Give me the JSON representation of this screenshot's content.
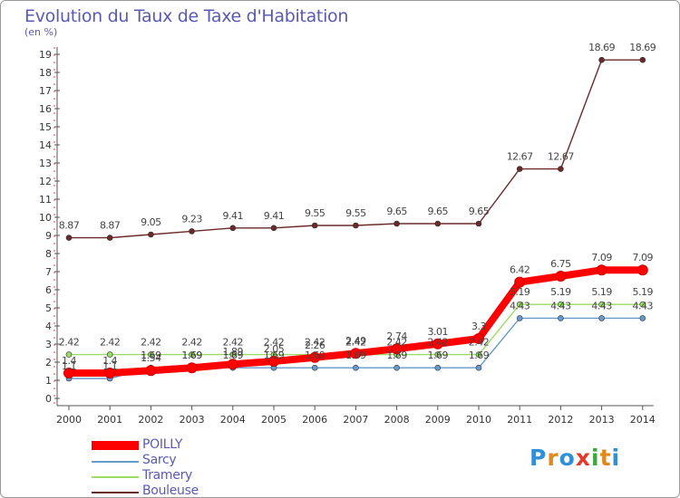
{
  "title": "Evolution du Taux de Taxe d'Habitation",
  "subtitle": "(en %)",
  "logo": "Proxiti",
  "chart_data": {
    "type": "line",
    "title": "Evolution du Taux de Taxe d'Habitation",
    "ylabel": "(en %)",
    "xlabel": "",
    "x": [
      "2000",
      "2001",
      "2002",
      "2003",
      "2004",
      "2005",
      "2006",
      "2007",
      "2008",
      "2009",
      "2010",
      "2011",
      "2012",
      "2013",
      "2014"
    ],
    "ylim": [
      0,
      19
    ],
    "yticks": [
      "0",
      "1",
      "2",
      "3",
      "4",
      "5",
      "6",
      "7",
      "8",
      "9",
      "10",
      "11",
      "12",
      "13",
      "14",
      "15",
      "16",
      "17",
      "18",
      "19"
    ],
    "grid": false,
    "legend": "bottom-left",
    "series": [
      {
        "name": "POILLY",
        "color": "#ff0000",
        "values": [
          1.4,
          1.4,
          1.54,
          1.69,
          1.89,
          2.05,
          2.26,
          2.49,
          2.74,
          3.01,
          3.3,
          6.42,
          6.75,
          7.09,
          7.09
        ],
        "labels": [
          "1.4",
          "1.4",
          "1.54",
          "1.69",
          "1.89",
          "2.05",
          "2.26",
          "2.49",
          "2.74",
          "3.01",
          "3.3",
          "6.42",
          "6.75",
          "7.09",
          "7.09"
        ]
      },
      {
        "name": "Sarcy",
        "color": "#6699cc",
        "values": [
          1.1,
          1.1,
          1.69,
          1.69,
          1.69,
          1.69,
          1.69,
          1.69,
          1.69,
          1.69,
          1.69,
          4.43,
          4.43,
          4.43,
          4.43
        ],
        "labels": [
          "1.1",
          "1.1",
          "1.69",
          "1.69",
          "1.69",
          "1.69",
          "1.69",
          "1.69",
          "1.69",
          "1.69",
          "1.69",
          "4.43",
          "4.43",
          "4.43",
          "4.43"
        ]
      },
      {
        "name": "Tramery",
        "color": "#99dd66",
        "values": [
          2.42,
          2.42,
          2.42,
          2.42,
          2.42,
          2.42,
          2.42,
          2.42,
          2.42,
          2.42,
          2.42,
          5.19,
          5.19,
          5.19,
          5.19
        ],
        "labels": [
          "2.42",
          "2.42",
          "2.42",
          "2.42",
          "2.42",
          "2.42",
          "2.42",
          "2.42",
          "2.42",
          "2.42",
          "2.42",
          "5.19",
          "5.19",
          "5.19",
          "5.19"
        ]
      },
      {
        "name": "Bouleuse",
        "color": "#6b2a2a",
        "values": [
          8.87,
          8.87,
          9.05,
          9.23,
          9.41,
          9.41,
          9.55,
          9.55,
          9.65,
          9.65,
          9.65,
          12.67,
          12.67,
          18.69,
          18.69
        ],
        "labels": [
          "8.87",
          "8.87",
          "9.05",
          "9.23",
          "9.41",
          "9.41",
          "9.55",
          "9.55",
          "9.65",
          "9.65",
          "9.65",
          "12.67",
          "12.67",
          "18.69",
          "18.69"
        ]
      }
    ]
  }
}
